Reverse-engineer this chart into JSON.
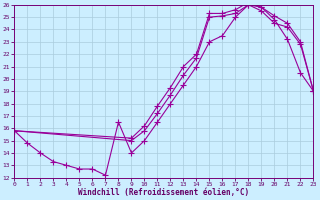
{
  "xlabel": "Windchill (Refroidissement éolien,°C)",
  "line_color": "#990099",
  "bg_color": "#cceeff",
  "grid_color": "#aaccdd",
  "line1_x": [
    0,
    1,
    2,
    3,
    4,
    5,
    6,
    7,
    8,
    9,
    10,
    11,
    12,
    13,
    14,
    15,
    16,
    17,
    18,
    19,
    20,
    21,
    22,
    23
  ],
  "line1_y": [
    15.8,
    14.8,
    14.0,
    13.3,
    13.0,
    12.7,
    12.7,
    12.2,
    16.5,
    14.0,
    15.0,
    16.5,
    18.0,
    19.5,
    21.0,
    23.0,
    23.5,
    25.0,
    26.0,
    25.8,
    24.8,
    23.2,
    20.5,
    19.0
  ],
  "line2_x": [
    0,
    9,
    10,
    11,
    12,
    13,
    14,
    15,
    16,
    17,
    18,
    19,
    20,
    21,
    22,
    23
  ],
  "line2_y": [
    15.8,
    15.2,
    16.2,
    17.8,
    19.3,
    21.0,
    22.0,
    25.3,
    25.3,
    25.6,
    26.2,
    25.8,
    25.1,
    24.5,
    23.0,
    19.0
  ],
  "line3_x": [
    0,
    9,
    10,
    11,
    12,
    13,
    14,
    15,
    16,
    17,
    18,
    19,
    20,
    21,
    22,
    23
  ],
  "line3_y": [
    15.8,
    15.0,
    15.8,
    17.2,
    18.7,
    20.3,
    21.7,
    25.0,
    25.1,
    25.3,
    26.0,
    25.5,
    24.5,
    24.2,
    22.8,
    19.0
  ],
  "xlim": [
    0,
    23
  ],
  "ylim": [
    12,
    26
  ],
  "yticks": [
    12,
    13,
    14,
    15,
    16,
    17,
    18,
    19,
    20,
    21,
    22,
    23,
    24,
    25,
    26
  ],
  "xticks": [
    0,
    1,
    2,
    3,
    4,
    5,
    6,
    7,
    8,
    9,
    10,
    11,
    12,
    13,
    14,
    15,
    16,
    17,
    18,
    19,
    20,
    21,
    22,
    23
  ],
  "marker": "+",
  "markersize": 4,
  "lw": 0.8
}
